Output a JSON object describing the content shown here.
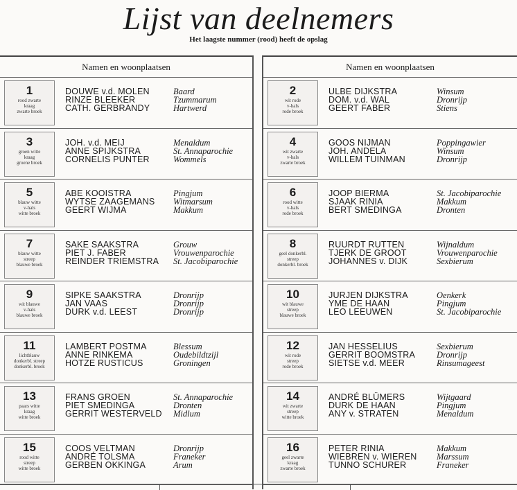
{
  "title": "Lijst van deelnemers",
  "subtitle": "Het laagste nummer (rood) heeft de opslag",
  "left": {
    "header": "Namen en woonplaatsen",
    "rows": [
      {
        "number": "1",
        "colors": [
          "rood zwarte",
          "kraag",
          "zwarte broek"
        ],
        "people": [
          {
            "name": "DOUWE v.d. MOLEN",
            "place": "Baard"
          },
          {
            "name": "RINZE BLEEKER",
            "place": "Tzummarum"
          },
          {
            "name": "CATH. GERBRANDY",
            "place": "Hartwerd"
          }
        ]
      },
      {
        "number": "3",
        "colors": [
          "groen witte",
          "kraag",
          "groene broek"
        ],
        "people": [
          {
            "name": "JOH. v.d. MEIJ",
            "place": "Menaldum"
          },
          {
            "name": "ANNE SPIJKSTRA",
            "place": "St. Annaparochie"
          },
          {
            "name": "CORNELIS PUNTER",
            "place": "Wommels"
          }
        ]
      },
      {
        "number": "5",
        "colors": [
          "blauw witte",
          "v-hals",
          "witte broek"
        ],
        "people": [
          {
            "name": "ABE KOOISTRA",
            "place": "Pingjum"
          },
          {
            "name": "WYTSE ZAAGEMANS",
            "place": "Witmarsum"
          },
          {
            "name": "GEERT WIJMA",
            "place": "Makkum"
          }
        ]
      },
      {
        "number": "7",
        "colors": [
          "blauw witte",
          "streep",
          "blauwe broek"
        ],
        "people": [
          {
            "name": "SAKE SAAKSTRA",
            "place": "Grouw"
          },
          {
            "name": "PIET J. FABER",
            "place": "Vrouwenparochie"
          },
          {
            "name": "REINDER TRIEMSTRA",
            "place": "St. Jacobiparochie"
          }
        ]
      },
      {
        "number": "9",
        "colors": [
          "wit blauwe",
          "v-hals",
          "blauwe broek"
        ],
        "people": [
          {
            "name": "SIPKE SAAKSTRA",
            "place": "Dronrijp"
          },
          {
            "name": "JAN VAAS",
            "place": "Dronrijp"
          },
          {
            "name": "DURK v.d. LEEST",
            "place": "Dronrijp"
          }
        ]
      },
      {
        "number": "11",
        "colors": [
          "lichtblauw",
          "donkerbl. streep",
          "donkerbl. broek"
        ],
        "people": [
          {
            "name": "LAMBERT POSTMA",
            "place": "Blessum"
          },
          {
            "name": "ANNE RINKEMA",
            "place": "Oudebildtzijl"
          },
          {
            "name": "HOTZE RUSTICUS",
            "place": "Groningen"
          }
        ]
      },
      {
        "number": "13",
        "colors": [
          "paars witte",
          "kraag",
          "witte broek"
        ],
        "people": [
          {
            "name": "FRANS GROEN",
            "place": "St. Annaparochie"
          },
          {
            "name": "PIET SMEDINGA",
            "place": "Dronten"
          },
          {
            "name": "GERRIT WESTERVELD",
            "place": "Midlum"
          }
        ]
      },
      {
        "number": "15",
        "colors": [
          "rood witte",
          "streep",
          "witte broek"
        ],
        "people": [
          {
            "name": "COOS VELTMAN",
            "place": "Dronrijp"
          },
          {
            "name": "ANDRÉ TOLSMA",
            "place": "Franeker"
          },
          {
            "name": "GERBEN OKKINGA",
            "place": "Arum"
          }
        ]
      }
    ]
  },
  "right": {
    "header": "Namen en woonplaatsen",
    "rows": [
      {
        "number": "2",
        "colors": [
          "wit rode",
          "v-hals",
          "rode broek"
        ],
        "people": [
          {
            "name": "ULBE DIJKSTRA",
            "place": "Winsum"
          },
          {
            "name": "DOM. v.d. WAL",
            "place": "Dronrijp"
          },
          {
            "name": "GEERT FABER",
            "place": "Stiens"
          }
        ]
      },
      {
        "number": "4",
        "colors": [
          "wit zwarte",
          "v-hals",
          "zwarte broek"
        ],
        "people": [
          {
            "name": "GOOS NIJMAN",
            "place": "Poppingawier"
          },
          {
            "name": "JOH. ANDELA",
            "place": "Winsum"
          },
          {
            "name": "WILLEM TUINMAN",
            "place": "Dronrijp"
          }
        ]
      },
      {
        "number": "6",
        "colors": [
          "rood witte",
          "v-hals",
          "rode broek"
        ],
        "people": [
          {
            "name": "JOOP BIERMA",
            "place": "St. Jacobiparochie"
          },
          {
            "name": "SJAAK RINIA",
            "place": "Makkum"
          },
          {
            "name": "BERT SMEDINGA",
            "place": "Dronten"
          }
        ]
      },
      {
        "number": "8",
        "colors": [
          "geel donkerbl.",
          "streep",
          "donkerbl. broek"
        ],
        "people": [
          {
            "name": "RUURDT RUTTEN",
            "place": "Wijnaldum"
          },
          {
            "name": "TJERK DE GROOT",
            "place": "Vrouwenparochie"
          },
          {
            "name": "JOHANNES v. DIJK",
            "place": "Sexbierum"
          }
        ]
      },
      {
        "number": "10",
        "colors": [
          "wit blauwe",
          "streep",
          "blauwe broek"
        ],
        "people": [
          {
            "name": "JURJEN DIJKSTRA",
            "place": "Oenkerk"
          },
          {
            "name": "YME DE HAAN",
            "place": "Pingjum"
          },
          {
            "name": "LEO LEEUWEN",
            "place": "St. Jacobiparochie"
          }
        ]
      },
      {
        "number": "12",
        "colors": [
          "wit rode",
          "streep",
          "rode broek"
        ],
        "people": [
          {
            "name": "JAN HESSELIUS",
            "place": "Sexbierum"
          },
          {
            "name": "GERRIT BOOMSTRA",
            "place": "Dronrijp"
          },
          {
            "name": "SIETSE v.d. MEER",
            "place": "Rinsumageest"
          }
        ]
      },
      {
        "number": "14",
        "colors": [
          "wit zwarte",
          "streep",
          "witte broek"
        ],
        "people": [
          {
            "name": "ANDRÉ BLÜMERS",
            "place": "Wijtgaard"
          },
          {
            "name": "DURK DE HAAN",
            "place": "Pingjum"
          },
          {
            "name": "ANY v. STRATEN",
            "place": "Menaldum"
          }
        ]
      },
      {
        "number": "16",
        "colors": [
          "geel zwarte",
          "kraag",
          "zwarte broek"
        ],
        "people": [
          {
            "name": "PETER RINIA",
            "place": "Makkum"
          },
          {
            "name": "WIEBREN v. WIEREN",
            "place": "Marssum"
          },
          {
            "name": "TUNNO SCHURER",
            "place": "Franeker"
          }
        ]
      }
    ]
  }
}
